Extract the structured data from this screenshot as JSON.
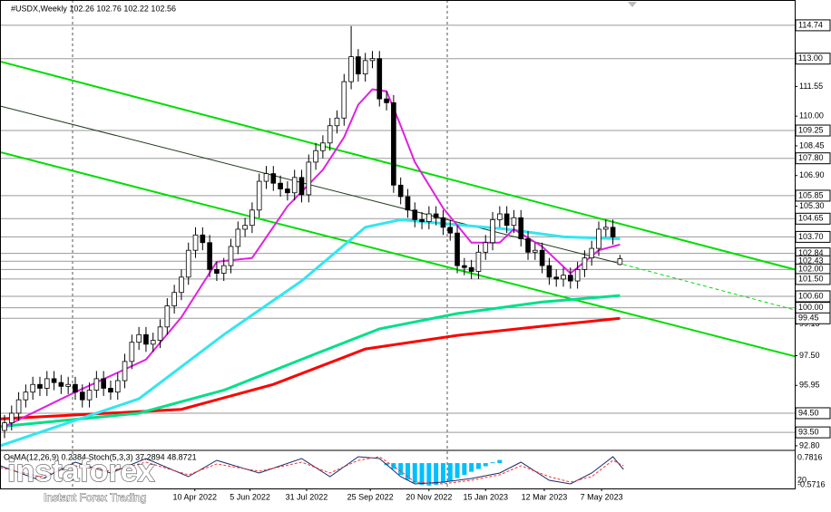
{
  "chart_data": {
    "type": "candlestick",
    "title": "#USDX,Weekly  102.26 102.76 102.22 102.56",
    "xlim": [
      -0.64,
      111.7
    ],
    "ylim": [
      92.56,
      116.06
    ],
    "xticks": [
      {
        "value": 26.9,
        "label": "10 Apr 2022"
      },
      {
        "value": 34.7,
        "label": "5 Jun 2022"
      },
      {
        "value": 42.7,
        "label": "31 Jul 2022"
      },
      {
        "value": 51.7,
        "label": "25 Sep 2022"
      },
      {
        "value": 60,
        "label": "20 Nov 2022"
      },
      {
        "value": 68,
        "label": "15 Jan 2023"
      },
      {
        "value": 76.3,
        "label": "12 Mar 2023"
      },
      {
        "value": 84.4,
        "label": "7 May 2023"
      }
    ],
    "yticks": [
      111.55,
      {
        "value": 110,
        "label": "110.00"
      },
      108.45,
      {
        "value": 106.9,
        "label": "106.90"
      },
      {
        "value": 105.3,
        "label": "105.30"
      },
      99.15,
      {
        "value": 97.5,
        "label": "97.50"
      },
      95.95,
      {
        "value": 92.8,
        "label": "92.80"
      }
    ],
    "levels": [
      114.74,
      {
        "value": 113,
        "label": "113.00"
      },
      109.25,
      {
        "value": 107.8,
        "label": "107.80"
      },
      105.85,
      104.65,
      {
        "value": 103.7,
        "label": "103.70"
      },
      102.84,
      102.43,
      {
        "value": 102,
        "label": "102.00"
      },
      {
        "value": 101.5,
        "label": "101.50"
      },
      {
        "value": 100.6,
        "label": "100.60"
      },
      {
        "value": 100,
        "label": "100.00"
      },
      99.45,
      {
        "value": 94.5,
        "label": "94.50"
      },
      {
        "value": 93.5,
        "label": "93.50"
      }
    ],
    "open": [
      93.6,
      94.0,
      94.5,
      95.2,
      95.6,
      96.0,
      95.8,
      96.3,
      96.1,
      95.9,
      96.0,
      95.6,
      95.2,
      95.7,
      96.3,
      95.8,
      95.6,
      96.2,
      97.2,
      98.2,
      98.6,
      98.1,
      98.3,
      99.0,
      100.1,
      100.8,
      101.6,
      103.0,
      103.8,
      103.4,
      102.0,
      101.8,
      102.2,
      103.2,
      104.1,
      104.3,
      105.1,
      106.6,
      107.0,
      106.5,
      106.2,
      106.0,
      106.8,
      105.9,
      107.6,
      108.2,
      108.6,
      109.5,
      109.9,
      111.8,
      113.1,
      112.2,
      112.9,
      113.0,
      110.9,
      110.7,
      106.4,
      105.8,
      105.1,
      104.6,
      104.5,
      104.9,
      104.7,
      104.2,
      103.9,
      102.2,
      102.1,
      101.9,
      102.9,
      103.4,
      104.6,
      104.9,
      104.3,
      104.7,
      103.6,
      102.9,
      103.0,
      102.2,
      101.6,
      101.5,
      101.7,
      101.4,
      102.0,
      102.6,
      103.1,
      104.1,
      104.2,
      102.26
    ],
    "high": [
      94.4,
      94.9,
      95.6,
      96.0,
      96.4,
      96.4,
      96.7,
      96.7,
      96.5,
      96.4,
      96.4,
      96.0,
      96.1,
      96.7,
      96.7,
      96.2,
      96.6,
      97.6,
      98.6,
      99.0,
      99.0,
      98.7,
      99.4,
      100.5,
      101.2,
      102.0,
      103.4,
      104.2,
      104.2,
      103.8,
      102.4,
      102.6,
      103.6,
      104.5,
      104.7,
      105.5,
      107.0,
      107.4,
      107.4,
      106.9,
      106.6,
      107.2,
      107.2,
      108.0,
      108.6,
      109.0,
      109.9,
      110.3,
      112.2,
      114.7,
      113.5,
      113.3,
      113.4,
      113.4,
      111.3,
      111.1,
      106.8,
      106.2,
      105.5,
      105.0,
      105.3,
      105.3,
      105.1,
      104.6,
      104.3,
      102.6,
      102.5,
      103.3,
      103.8,
      105.0,
      105.3,
      105.3,
      105.1,
      105.1,
      104.0,
      103.4,
      103.4,
      102.6,
      102.0,
      102.1,
      102.1,
      102.4,
      103.0,
      103.5,
      104.5,
      104.6,
      104.6,
      102.76
    ],
    "low": [
      93.2,
      93.6,
      94.1,
      94.8,
      95.2,
      95.4,
      95.4,
      95.7,
      95.5,
      95.5,
      95.2,
      94.8,
      94.8,
      95.3,
      95.4,
      95.2,
      95.2,
      95.8,
      96.8,
      97.8,
      97.7,
      97.7,
      97.9,
      98.6,
      99.7,
      100.4,
      101.2,
      102.6,
      103.0,
      101.6,
      101.4,
      101.4,
      101.8,
      102.8,
      103.7,
      103.9,
      104.7,
      106.2,
      106.1,
      105.8,
      105.6,
      105.6,
      105.5,
      105.5,
      107.2,
      107.8,
      108.2,
      109.1,
      109.5,
      111.4,
      111.8,
      111.8,
      112.5,
      110.5,
      110.3,
      106.0,
      105.4,
      104.7,
      104.2,
      104.1,
      104.1,
      104.3,
      103.8,
      103.5,
      101.8,
      101.7,
      101.5,
      101.5,
      102.5,
      103.0,
      104.2,
      103.9,
      103.9,
      103.2,
      102.5,
      102.5,
      101.8,
      101.2,
      101.1,
      101.1,
      101.0,
      101.0,
      101.6,
      102.2,
      102.7,
      103.7,
      103.3,
      102.22
    ],
    "close": [
      94.0,
      94.5,
      95.2,
      95.6,
      96.0,
      95.8,
      96.3,
      96.1,
      95.9,
      96.0,
      95.6,
      95.2,
      95.7,
      96.3,
      95.8,
      95.6,
      96.2,
      97.2,
      98.2,
      98.6,
      98.1,
      98.3,
      99.0,
      100.1,
      100.8,
      101.6,
      103.0,
      103.8,
      103.4,
      102.0,
      101.8,
      102.2,
      103.2,
      104.1,
      104.3,
      105.1,
      106.6,
      107.0,
      106.5,
      106.2,
      106.0,
      106.8,
      105.9,
      107.6,
      108.2,
      108.6,
      109.5,
      109.9,
      111.8,
      113.1,
      112.2,
      112.9,
      113.0,
      110.9,
      110.7,
      106.4,
      105.8,
      105.1,
      104.6,
      104.5,
      104.9,
      104.7,
      104.2,
      103.9,
      102.2,
      102.1,
      101.9,
      102.9,
      103.4,
      104.6,
      104.9,
      104.3,
      104.7,
      103.6,
      102.9,
      103.0,
      102.2,
      101.6,
      101.5,
      101.7,
      101.4,
      102.0,
      102.6,
      103.1,
      104.1,
      104.2,
      103.7,
      102.56
    ],
    "overlays": [
      {
        "color": "#00dd00",
        "width": 2,
        "x": [
          -0.64,
          111.7
        ],
        "values": [
          112.85,
          102.0
        ]
      },
      {
        "color": "#00dd00",
        "width": 2,
        "x": [
          -0.64,
          111.7
        ],
        "values": [
          108.12,
          97.47
        ]
      },
      {
        "color": "#1a3a1a",
        "width": 1,
        "x": [
          -0.64,
          86.6
        ],
        "values": [
          110.53,
          102.35
        ]
      },
      {
        "color": "#00dd00",
        "width": 1,
        "dashed": true,
        "x": [
          86.6,
          111.7
        ],
        "values": [
          102.35,
          99.89
        ]
      },
      {
        "color": "#ff0000",
        "width": 3,
        "x": [
          -0.6,
          25,
          38,
          51,
          64,
          76,
          87
        ],
        "values": [
          94.2,
          94.7,
          96.0,
          97.85,
          98.56,
          99.04,
          99.45
        ]
      },
      {
        "color": "#00e08a",
        "width": 3,
        "x": [
          -0.6,
          19,
          31,
          44,
          53,
          64,
          76,
          87
        ],
        "values": [
          93.8,
          94.5,
          95.7,
          97.6,
          98.9,
          99.7,
          100.3,
          100.64
        ]
      },
      {
        "color": "#33e6f0",
        "width": 3,
        "x": [
          -0.6,
          19,
          31,
          42,
          51,
          56,
          62,
          71,
          79,
          87
        ],
        "values": [
          92.8,
          95.25,
          98.6,
          101.4,
          104.2,
          104.6,
          104.4,
          104.1,
          103.7,
          103.6
        ]
      },
      {
        "color": "#e020e0",
        "width": 2,
        "x": [
          0,
          10,
          20,
          25,
          30,
          35,
          40,
          45,
          48,
          50,
          52,
          54,
          56,
          58,
          62,
          66,
          70,
          72,
          76,
          80,
          84,
          87
        ],
        "values": [
          93.8,
          95.6,
          97.3,
          99.5,
          102.4,
          102.6,
          105.3,
          107.2,
          108.9,
          110.6,
          111.4,
          111.3,
          109.5,
          107.6,
          105.2,
          103.4,
          103.4,
          104.1,
          103.2,
          101.8,
          103.0,
          103.3
        ]
      }
    ],
    "subpanel": {
      "label": "OsMA(12,26,9) 0.2384  Stoch(5,3,3) 37.2894 48.8721",
      "right_labels": [
        "0.7816",
        "20",
        "-0.5716"
      ],
      "ylim": [
        0,
        100
      ],
      "y2lim": [
        -0.62,
        0.3
      ],
      "osma": {
        "color": "#00bfff",
        "x": [
          54,
          55,
          56,
          57,
          58,
          59,
          60,
          61,
          62,
          63,
          64,
          65,
          66,
          67,
          68,
          69,
          70
        ],
        "values": [
          -0.05,
          -0.15,
          -0.3,
          -0.42,
          -0.5,
          -0.55,
          -0.57,
          -0.55,
          -0.5,
          -0.45,
          -0.38,
          -0.3,
          -0.22,
          -0.15,
          -0.08,
          0.02,
          0.08
        ]
      },
      "stoch_x": [
        -0.6,
        5,
        10,
        15,
        20,
        26,
        30,
        36,
        42,
        46,
        50,
        53,
        56,
        58,
        62,
        66,
        70,
        73,
        77,
        80,
        83,
        86,
        87.5
      ],
      "stoch_main": {
        "color": "#1a2a6a",
        "values": [
          60,
          20,
          70,
          40,
          80,
          30,
          75,
          40,
          80,
          30,
          85,
          80,
          30,
          10,
          15,
          25,
          40,
          70,
          20,
          10,
          40,
          85,
          50
        ]
      },
      "stoch_signal": {
        "color": "#ff3030",
        "values": [
          55,
          30,
          60,
          45,
          70,
          35,
          65,
          45,
          70,
          40,
          75,
          85,
          45,
          15,
          10,
          20,
          35,
          60,
          30,
          15,
          30,
          75,
          60
        ]
      }
    },
    "watermark": {
      "brand": "instaforex",
      "tagline": "Instant Forex Trading"
    }
  }
}
